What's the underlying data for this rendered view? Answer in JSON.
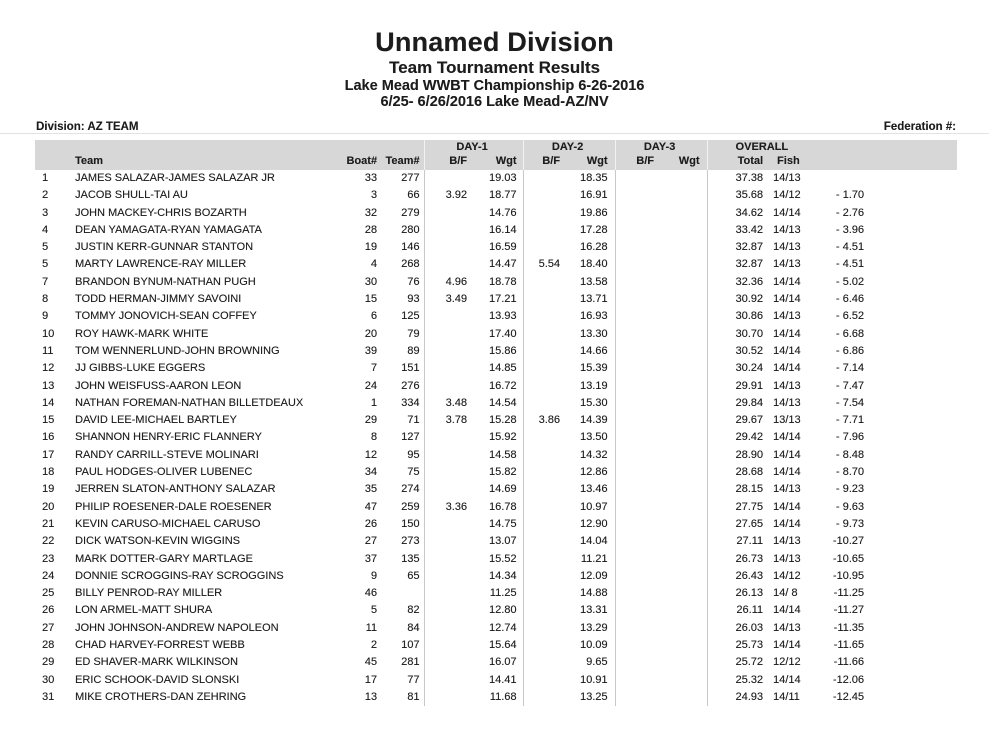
{
  "page": {
    "title": "Unnamed Division",
    "subtitle": "Team Tournament Results",
    "event_line": "Lake Mead WWBT Championship 6-26-2016",
    "date_line": "6/25- 6/26/2016 Lake Mead-AZ/NV",
    "division_label": "Division: AZ TEAM",
    "federation_label": "Federation #:"
  },
  "table": {
    "group_headers": [
      "DAY-1",
      "DAY-2",
      "DAY-3",
      "OVERALL"
    ],
    "columns": {
      "team": "Team",
      "boat": "Boat#",
      "team_no": "Team#",
      "bf": "B/F",
      "wgt": "Wgt",
      "total": "Total",
      "fish": "Fish"
    },
    "rows": [
      [
        "1",
        "JAMES SALAZAR-JAMES SALAZAR JR",
        "33",
        "277",
        "",
        "19.03",
        "",
        "18.35",
        "",
        "",
        "37.38",
        "14/13",
        ""
      ],
      [
        "2",
        "JACOB SHULL-TAI AU",
        "3",
        "66",
        "3.92",
        "18.77",
        "",
        "16.91",
        "",
        "",
        "35.68",
        "14/12",
        "- 1.70"
      ],
      [
        "3",
        "JOHN MACKEY-CHRIS BOZARTH",
        "32",
        "279",
        "",
        "14.76",
        "",
        "19.86",
        "",
        "",
        "34.62",
        "14/14",
        "- 2.76"
      ],
      [
        "4",
        "DEAN YAMAGATA-RYAN YAMAGATA",
        "28",
        "280",
        "",
        "16.14",
        "",
        "17.28",
        "",
        "",
        "33.42",
        "14/13",
        "- 3.96"
      ],
      [
        "5",
        "JUSTIN KERR-GUNNAR STANTON",
        "19",
        "146",
        "",
        "16.59",
        "",
        "16.28",
        "",
        "",
        "32.87",
        "14/13",
        "- 4.51"
      ],
      [
        "5",
        "MARTY LAWRENCE-RAY MILLER",
        "4",
        "268",
        "",
        "14.47",
        "5.54",
        "18.40",
        "",
        "",
        "32.87",
        "14/13",
        "- 4.51"
      ],
      [
        "7",
        "BRANDON BYNUM-NATHAN PUGH",
        "30",
        "76",
        "4.96",
        "18.78",
        "",
        "13.58",
        "",
        "",
        "32.36",
        "14/14",
        "- 5.02"
      ],
      [
        "8",
        "TODD HERMAN-JIMMY SAVOINI",
        "15",
        "93",
        "3.49",
        "17.21",
        "",
        "13.71",
        "",
        "",
        "30.92",
        "14/14",
        "- 6.46"
      ],
      [
        "9",
        "TOMMY JONOVICH-SEAN COFFEY",
        "6",
        "125",
        "",
        "13.93",
        "",
        "16.93",
        "",
        "",
        "30.86",
        "14/13",
        "- 6.52"
      ],
      [
        "10",
        "ROY HAWK-MARK WHITE",
        "20",
        "79",
        "",
        "17.40",
        "",
        "13.30",
        "",
        "",
        "30.70",
        "14/14",
        "- 6.68"
      ],
      [
        "11",
        "TOM WENNERLUND-JOHN BROWNING",
        "39",
        "89",
        "",
        "15.86",
        "",
        "14.66",
        "",
        "",
        "30.52",
        "14/14",
        "- 6.86"
      ],
      [
        "12",
        "JJ GIBBS-LUKE EGGERS",
        "7",
        "151",
        "",
        "14.85",
        "",
        "15.39",
        "",
        "",
        "30.24",
        "14/14",
        "- 7.14"
      ],
      [
        "13",
        "JOHN WEISFUSS-AARON LEON",
        "24",
        "276",
        "",
        "16.72",
        "",
        "13.19",
        "",
        "",
        "29.91",
        "14/13",
        "- 7.47"
      ],
      [
        "14",
        "NATHAN FOREMAN-NATHAN BILLETDEAUX",
        "1",
        "334",
        "3.48",
        "14.54",
        "",
        "15.30",
        "",
        "",
        "29.84",
        "14/13",
        "- 7.54"
      ],
      [
        "15",
        "DAVID LEE-MICHAEL BARTLEY",
        "29",
        "71",
        "3.78",
        "15.28",
        "3.86",
        "14.39",
        "",
        "",
        "29.67",
        "13/13",
        "- 7.71"
      ],
      [
        "16",
        "SHANNON HENRY-ERIC FLANNERY",
        "8",
        "127",
        "",
        "15.92",
        "",
        "13.50",
        "",
        "",
        "29.42",
        "14/14",
        "- 7.96"
      ],
      [
        "17",
        "RANDY CARRILL-STEVE MOLINARI",
        "12",
        "95",
        "",
        "14.58",
        "",
        "14.32",
        "",
        "",
        "28.90",
        "14/14",
        "- 8.48"
      ],
      [
        "18",
        "PAUL HODGES-OLIVER LUBENEC",
        "34",
        "75",
        "",
        "15.82",
        "",
        "12.86",
        "",
        "",
        "28.68",
        "14/14",
        "- 8.70"
      ],
      [
        "19",
        "JERREN SLATON-ANTHONY SALAZAR",
        "35",
        "274",
        "",
        "14.69",
        "",
        "13.46",
        "",
        "",
        "28.15",
        "14/13",
        "- 9.23"
      ],
      [
        "20",
        "PHILIP ROESENER-DALE ROESENER",
        "47",
        "259",
        "3.36",
        "16.78",
        "",
        "10.97",
        "",
        "",
        "27.75",
        "14/14",
        "- 9.63"
      ],
      [
        "21",
        "KEVIN CARUSO-MICHAEL CARUSO",
        "26",
        "150",
        "",
        "14.75",
        "",
        "12.90",
        "",
        "",
        "27.65",
        "14/14",
        "- 9.73"
      ],
      [
        "22",
        "DICK WATSON-KEVIN WIGGINS",
        "27",
        "273",
        "",
        "13.07",
        "",
        "14.04",
        "",
        "",
        "27.11",
        "14/13",
        "-10.27"
      ],
      [
        "23",
        "MARK DOTTER-GARY MARTLAGE",
        "37",
        "135",
        "",
        "15.52",
        "",
        "11.21",
        "",
        "",
        "26.73",
        "14/13",
        "-10.65"
      ],
      [
        "24",
        "DONNIE SCROGGINS-RAY SCROGGINS",
        "9",
        "65",
        "",
        "14.34",
        "",
        "12.09",
        "",
        "",
        "26.43",
        "14/12",
        "-10.95"
      ],
      [
        "25",
        "BILLY PENROD-RAY MILLER",
        "46",
        "",
        "",
        "11.25",
        "",
        "14.88",
        "",
        "",
        "26.13",
        "14/ 8",
        "-11.25"
      ],
      [
        "26",
        "LON ARMEL-MATT SHURA",
        "5",
        "82",
        "",
        "12.80",
        "",
        "13.31",
        "",
        "",
        "26.11",
        "14/14",
        "-11.27"
      ],
      [
        "27",
        "JOHN JOHNSON-ANDREW NAPOLEON",
        "11",
        "84",
        "",
        "12.74",
        "",
        "13.29",
        "",
        "",
        "26.03",
        "14/13",
        "-11.35"
      ],
      [
        "28",
        "CHAD HARVEY-FORREST WEBB",
        "2",
        "107",
        "",
        "15.64",
        "",
        "10.09",
        "",
        "",
        "25.73",
        "14/14",
        "-11.65"
      ],
      [
        "29",
        "ED SHAVER-MARK WILKINSON",
        "45",
        "281",
        "",
        "16.07",
        "",
        "9.65",
        "",
        "",
        "25.72",
        "12/12",
        "-11.66"
      ],
      [
        "30",
        "ERIC SCHOOK-DAVID SLONSKI",
        "17",
        "77",
        "",
        "14.41",
        "",
        "10.91",
        "",
        "",
        "25.32",
        "14/14",
        "-12.06"
      ],
      [
        "31",
        "MIKE CROTHERS-DAN ZEHRING",
        "13",
        "81",
        "",
        "11.68",
        "",
        "13.25",
        "",
        "",
        "24.93",
        "14/11",
        "-12.45"
      ]
    ]
  }
}
